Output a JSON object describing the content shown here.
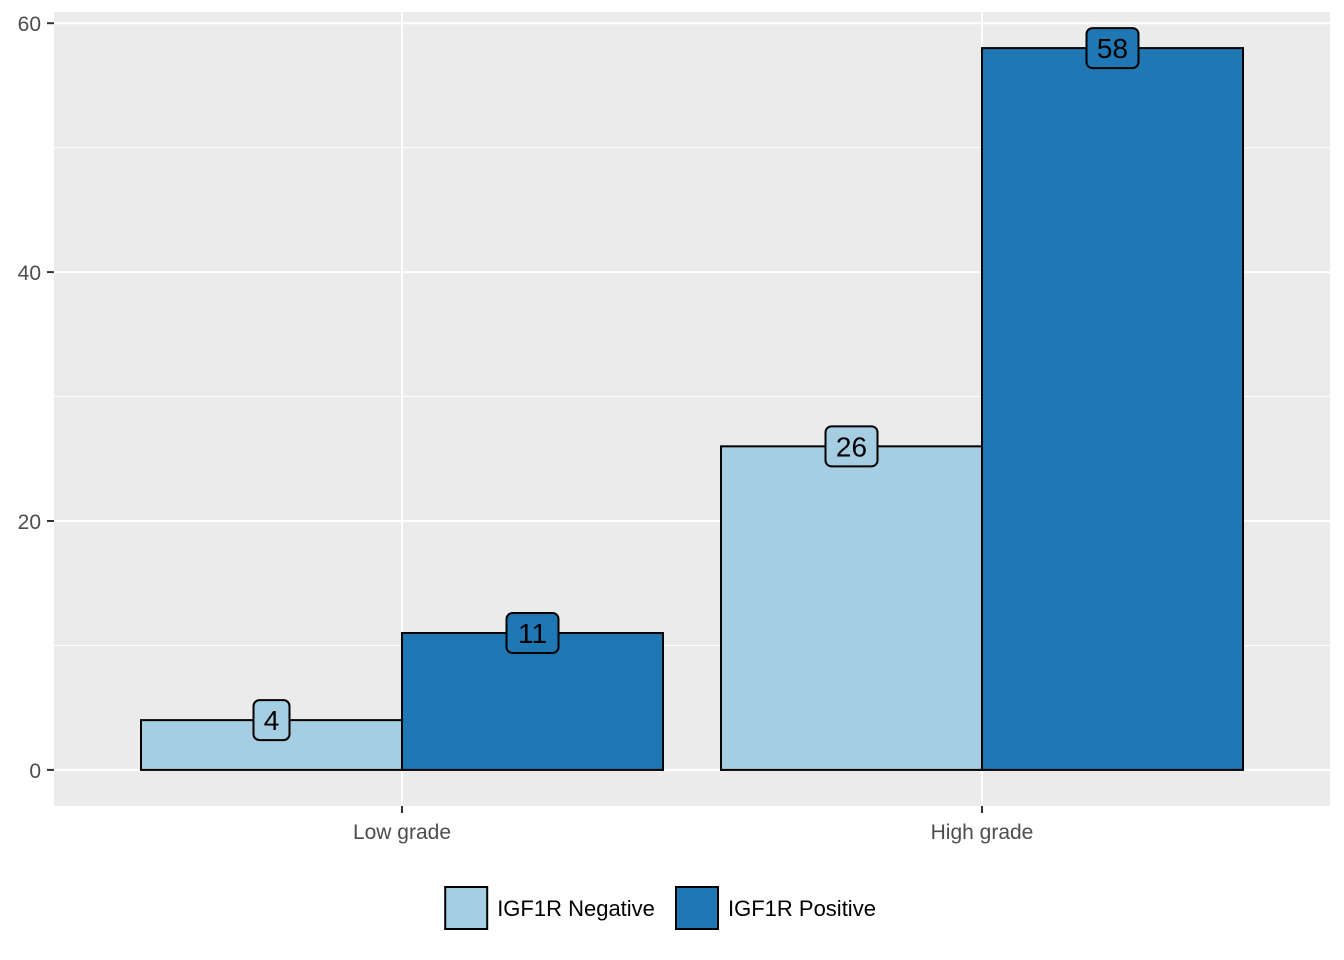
{
  "chart_data": {
    "type": "bar",
    "categories": [
      "Low grade",
      "High grade"
    ],
    "series": [
      {
        "name": "IGF1R Negative",
        "color": "#a6cee3",
        "values": [
          4,
          26
        ]
      },
      {
        "name": "IGF1R Positive",
        "color": "#1f78b4",
        "values": [
          11,
          58
        ]
      }
    ],
    "title": "",
    "xlabel": "",
    "ylabel": "",
    "ylim": [
      -2.9,
      60.9
    ],
    "yticks": [
      0,
      20,
      40,
      60
    ],
    "grid": true,
    "panel_background": "#ebebeb",
    "legend_position": "bottom"
  }
}
